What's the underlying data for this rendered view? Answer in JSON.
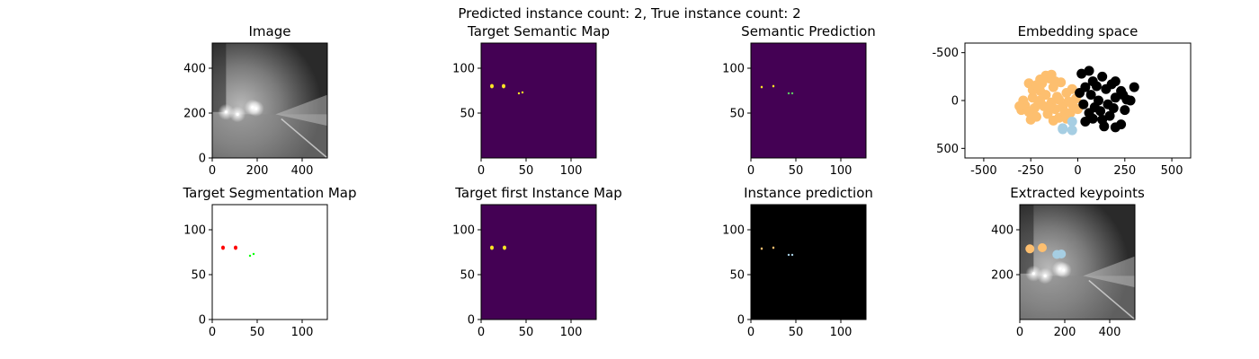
{
  "suptitle": "Predicted instance count: 2, True instance count: 2",
  "colors": {
    "viridis_bg": "#440154",
    "viridis_hi": "#fde725",
    "viridis_mid": "#5ec962",
    "orange": "#fdbf6f",
    "lightblue": "#a6cee3",
    "black": "#000000",
    "red": "#ff0000",
    "green": "#00ff00"
  },
  "chart_data": [
    {
      "type": "image",
      "title": "Image",
      "xlim": [
        0,
        512
      ],
      "ylim": [
        512,
        0
      ],
      "xticks": [
        0,
        200,
        400
      ],
      "yticks": [
        0,
        200,
        400
      ]
    },
    {
      "type": "heatmap",
      "title": "Target Semantic Map",
      "xlim": [
        0,
        128
      ],
      "ylim": [
        128,
        0
      ],
      "xticks": [
        0,
        50,
        100
      ],
      "yticks": [
        50,
        100
      ],
      "blobs": [
        {
          "x": 12,
          "y": 80,
          "rx": 2,
          "ry": 2.4,
          "color": "viridis_hi"
        },
        {
          "x": 25,
          "y": 80,
          "rx": 2,
          "ry": 2.4,
          "color": "viridis_hi"
        },
        {
          "x": 42,
          "y": 72,
          "rx": 1.2,
          "ry": 1.2,
          "color": "viridis_hi"
        },
        {
          "x": 46,
          "y": 73,
          "rx": 1.2,
          "ry": 1.2,
          "color": "viridis_hi"
        }
      ]
    },
    {
      "type": "heatmap",
      "title": "Semantic Prediction",
      "xlim": [
        0,
        128
      ],
      "ylim": [
        128,
        0
      ],
      "xticks": [
        0,
        50,
        100
      ],
      "yticks": [
        50,
        100
      ],
      "blobs": [
        {
          "x": 12,
          "y": 79,
          "rx": 1.2,
          "ry": 1.4,
          "color": "viridis_hi"
        },
        {
          "x": 25,
          "y": 80,
          "rx": 1.2,
          "ry": 1.4,
          "color": "viridis_hi"
        },
        {
          "x": 42,
          "y": 72,
          "rx": 1.2,
          "ry": 1.2,
          "color": "viridis_mid"
        },
        {
          "x": 46,
          "y": 72,
          "rx": 1.2,
          "ry": 1.2,
          "color": "viridis_mid"
        }
      ]
    },
    {
      "type": "scatter",
      "title": "Embedding space",
      "xlim": [
        -600,
        600
      ],
      "ylim": [
        -600,
        600
      ],
      "xticks": [
        -500,
        -250,
        0,
        250,
        500
      ],
      "yticks": [
        -500,
        0,
        500
      ],
      "series": [
        {
          "color": "orange",
          "points": [
            [
              -300,
              100
            ],
            [
              -280,
              50
            ],
            [
              -260,
              120
            ],
            [
              -240,
              -30
            ],
            [
              -230,
              80
            ],
            [
              -220,
              170
            ],
            [
              -210,
              40
            ],
            [
              -200,
              -100
            ],
            [
              -190,
              -180
            ],
            [
              -180,
              60
            ],
            [
              -170,
              -60
            ],
            [
              -160,
              140
            ],
            [
              -150,
              -230
            ],
            [
              -140,
              20
            ],
            [
              -130,
              -140
            ],
            [
              -120,
              90
            ],
            [
              -110,
              -40
            ],
            [
              -100,
              180
            ],
            [
              -90,
              -190
            ],
            [
              -80,
              60
            ],
            [
              -70,
              120
            ],
            [
              -60,
              -80
            ],
            [
              -50,
              10
            ],
            [
              -40,
              130
            ],
            [
              -30,
              -120
            ],
            [
              -20,
              70
            ],
            [
              -10,
              -20
            ],
            [
              0,
              90
            ],
            [
              -260,
              -180
            ],
            [
              -240,
              -110
            ],
            [
              -200,
              -220
            ],
            [
              -170,
              -260
            ],
            [
              -140,
              -270
            ],
            [
              -120,
              -200
            ],
            [
              -290,
              0
            ],
            [
              -310,
              60
            ],
            [
              -250,
              200
            ],
            [
              -130,
              210
            ],
            [
              -60,
              190
            ],
            [
              -100,
              -10
            ],
            [
              -200,
              0
            ],
            [
              -150,
              70
            ],
            [
              -220,
              -160
            ],
            [
              -30,
              40
            ]
          ]
        },
        {
          "color": "lightblue",
          "points": [
            [
              -80,
              300
            ],
            [
              -30,
              310
            ],
            [
              -30,
              220
            ],
            [
              -80,
              290
            ]
          ]
        },
        {
          "color": "black",
          "points": [
            [
              40,
              220
            ],
            [
              80,
              190
            ],
            [
              140,
              270
            ],
            [
              200,
              280
            ],
            [
              230,
              250
            ],
            [
              60,
              130
            ],
            [
              120,
              110
            ],
            [
              170,
              160
            ],
            [
              250,
              100
            ],
            [
              280,
              0
            ],
            [
              300,
              -140
            ],
            [
              240,
              -60
            ],
            [
              200,
              -30
            ],
            [
              160,
              40
            ],
            [
              110,
              0
            ],
            [
              70,
              -60
            ],
            [
              40,
              -140
            ],
            [
              80,
              -200
            ],
            [
              130,
              -250
            ],
            [
              180,
              -170
            ],
            [
              230,
              -100
            ],
            [
              20,
              -280
            ],
            [
              60,
              -310
            ],
            [
              100,
              -150
            ],
            [
              150,
              -120
            ],
            [
              200,
              -200
            ],
            [
              260,
              -10
            ],
            [
              10,
              -80
            ],
            [
              30,
              40
            ],
            [
              90,
              70
            ],
            [
              190,
              80
            ],
            [
              130,
              200
            ]
          ]
        }
      ]
    },
    {
      "type": "segmentation",
      "title": "Target Segmentation Map",
      "xlim": [
        0,
        128
      ],
      "ylim": [
        128,
        0
      ],
      "xticks": [
        0,
        50,
        100
      ],
      "yticks": [
        0,
        50,
        100
      ],
      "blobs": [
        {
          "x": 12,
          "y": 80,
          "rx": 2,
          "ry": 2.4,
          "color": "red"
        },
        {
          "x": 26,
          "y": 80,
          "rx": 2,
          "ry": 2.4,
          "color": "red"
        },
        {
          "x": 42,
          "y": 71,
          "rx": 1.2,
          "ry": 1.2,
          "color": "green"
        },
        {
          "x": 46,
          "y": 73,
          "rx": 1.2,
          "ry": 1.2,
          "color": "green"
        }
      ]
    },
    {
      "type": "heatmap",
      "title": "Target first Instance Map",
      "xlim": [
        0,
        128
      ],
      "ylim": [
        128,
        0
      ],
      "xticks": [
        0,
        50,
        100
      ],
      "yticks": [
        0,
        50,
        100
      ],
      "blobs": [
        {
          "x": 12,
          "y": 80,
          "rx": 2,
          "ry": 2.4,
          "color": "viridis_hi"
        },
        {
          "x": 26,
          "y": 80,
          "rx": 2,
          "ry": 2.4,
          "color": "viridis_hi"
        }
      ]
    },
    {
      "type": "instance",
      "title": "Instance prediction",
      "xlim": [
        0,
        128
      ],
      "ylim": [
        128,
        0
      ],
      "xticks": [
        0,
        50,
        100
      ],
      "yticks": [
        0,
        50,
        100
      ],
      "blobs": [
        {
          "x": 12,
          "y": 79,
          "rx": 1.2,
          "ry": 1.4,
          "color": "orange"
        },
        {
          "x": 25,
          "y": 80,
          "rx": 1.2,
          "ry": 1.4,
          "color": "orange"
        },
        {
          "x": 42,
          "y": 72,
          "rx": 1.2,
          "ry": 1.2,
          "color": "lightblue"
        },
        {
          "x": 46,
          "y": 72,
          "rx": 1.2,
          "ry": 1.2,
          "color": "lightblue"
        }
      ]
    },
    {
      "type": "image",
      "title": "Extracted keypoints",
      "xlim": [
        0,
        512
      ],
      "ylim": [
        512,
        0
      ],
      "xticks": [
        0,
        200,
        400
      ],
      "yticks": [
        200,
        400
      ],
      "points": [
        {
          "x": 45,
          "y": 315,
          "color": "orange"
        },
        {
          "x": 100,
          "y": 320,
          "color": "orange"
        },
        {
          "x": 165,
          "y": 290,
          "color": "lightblue"
        },
        {
          "x": 185,
          "y": 292,
          "color": "lightblue"
        }
      ]
    }
  ]
}
